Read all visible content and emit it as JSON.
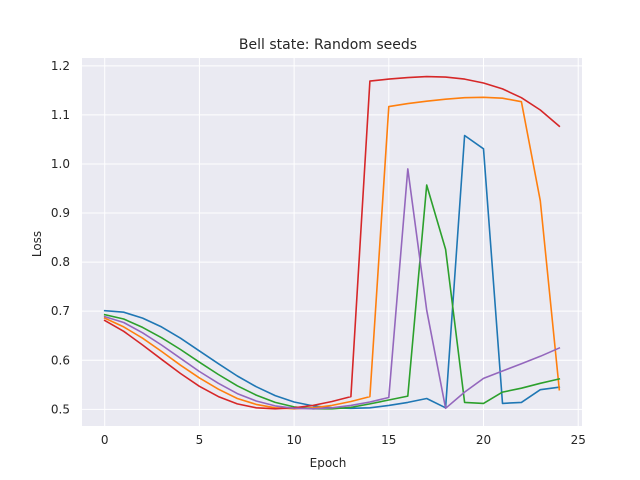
{
  "chart_data": {
    "type": "line",
    "title": "Bell state: Random seeds",
    "xlabel": "Epoch",
    "ylabel": "Loss",
    "xlim": [
      -1.2,
      25.2
    ],
    "ylim": [
      0.466,
      1.216
    ],
    "xticks": [
      0,
      5,
      10,
      15,
      20,
      25
    ],
    "yticks": [
      0.5,
      0.6,
      0.7,
      0.8,
      0.9,
      1.0,
      1.1,
      1.2
    ],
    "xtick_labels": [
      "0",
      "5",
      "10",
      "15",
      "20",
      "25"
    ],
    "ytick_labels": [
      "0.5",
      "0.6",
      "0.7",
      "0.8",
      "0.9",
      "1.0",
      "1.1",
      "1.2"
    ],
    "grid": true,
    "background": "#eaeaf2",
    "grid_color": "#ffffff",
    "x": [
      0,
      1,
      2,
      3,
      4,
      5,
      6,
      7,
      8,
      9,
      10,
      11,
      12,
      13,
      14,
      15,
      16,
      17,
      18,
      19,
      20,
      21,
      22,
      23,
      24
    ],
    "series": [
      {
        "color": "#1f77b4",
        "values": [
          0.701,
          0.698,
          0.686,
          0.668,
          0.645,
          0.619,
          0.593,
          0.568,
          0.546,
          0.528,
          0.515,
          0.507,
          0.503,
          0.502,
          0.503,
          0.508,
          0.514,
          0.522,
          0.503,
          1.058,
          1.031,
          0.512,
          0.514,
          0.54,
          0.545
        ]
      },
      {
        "color": "#ff7f0e",
        "values": [
          0.686,
          0.668,
          0.645,
          0.618,
          0.59,
          0.564,
          0.541,
          0.522,
          0.51,
          0.503,
          0.501,
          0.503,
          0.508,
          0.516,
          0.526,
          1.117,
          1.123,
          1.128,
          1.132,
          1.135,
          1.136,
          1.134,
          1.127,
          0.925,
          0.54
        ]
      },
      {
        "color": "#2ca02c",
        "values": [
          0.693,
          0.684,
          0.667,
          0.646,
          0.622,
          0.596,
          0.571,
          0.548,
          0.529,
          0.514,
          0.505,
          0.501,
          0.501,
          0.504,
          0.511,
          0.519,
          0.527,
          0.957,
          0.826,
          0.514,
          0.512,
          0.535,
          0.543,
          0.553,
          0.562
        ]
      },
      {
        "color": "#d62728",
        "values": [
          0.681,
          0.659,
          0.631,
          0.602,
          0.573,
          0.547,
          0.526,
          0.511,
          0.503,
          0.501,
          0.503,
          0.508,
          0.516,
          0.526,
          1.169,
          1.173,
          1.176,
          1.178,
          1.177,
          1.173,
          1.165,
          1.153,
          1.135,
          1.11,
          1.077
        ]
      },
      {
        "color": "#9467bd",
        "values": [
          0.689,
          0.677,
          0.656,
          0.631,
          0.604,
          0.577,
          0.553,
          0.532,
          0.517,
          0.507,
          0.502,
          0.501,
          0.503,
          0.508,
          0.515,
          0.524,
          0.99,
          0.702,
          0.502,
          0.535,
          0.563,
          0.578,
          0.593,
          0.608,
          0.625
        ]
      }
    ]
  }
}
